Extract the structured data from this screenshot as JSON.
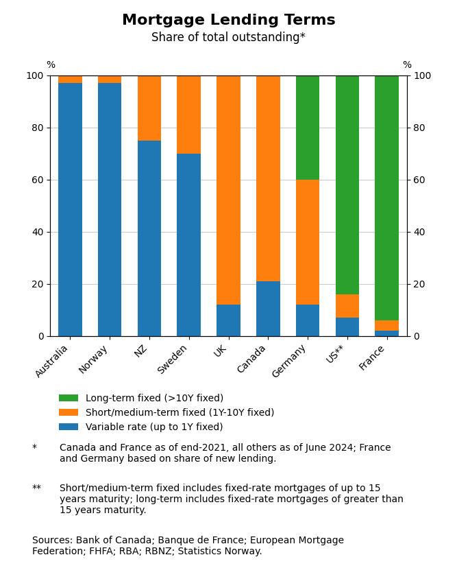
{
  "chart_data": {
    "type": "bar",
    "stacked": true,
    "title": "Mortgage Lending Terms",
    "subtitle": "Share of total outstanding*",
    "categories": [
      "Australia",
      "Norway",
      "NZ",
      "Sweden",
      "UK",
      "Canada",
      "Germany",
      "US**",
      "France"
    ],
    "series": [
      {
        "name": "Variable rate (up to 1Y fixed)",
        "values": [
          97,
          97,
          75,
          70,
          12,
          21,
          12,
          7,
          2
        ]
      },
      {
        "name": "Short/medium-term fixed (1Y-10Y fixed)",
        "values": [
          3,
          3,
          25,
          30,
          88,
          79,
          48,
          9,
          4
        ]
      },
      {
        "name": "Long-term fixed (>10Y fixed)",
        "values": [
          0,
          0,
          0,
          0,
          0,
          0,
          40,
          84,
          94
        ]
      }
    ],
    "ylabel": "%",
    "y2label": "%",
    "ylim": [
      0,
      100
    ],
    "yticks": [
      0,
      20,
      40,
      60,
      80,
      100
    ],
    "y2lim": [
      0,
      100
    ],
    "y2ticks": [
      0,
      20,
      40,
      60,
      80,
      100
    ],
    "grid": true,
    "legend": "upper left",
    "footnotes": [
      {
        "marker": "*",
        "text": "Canada and France as of end-2021, all others as of June 2024; France\nand Germany based on share of new lending."
      },
      {
        "marker": "**",
        "text": "Short/medium-term fixed includes fixed-rate mortgages of up to 15\nyears maturity; long-term includes fixed-rate mortgages of greater than\n15 years maturity."
      }
    ],
    "sources": "Sources: Bank of Canada; Banque de France; European Mortgage\nFederation; FHFA; RBA; RBNZ; Statistics Norway."
  }
}
